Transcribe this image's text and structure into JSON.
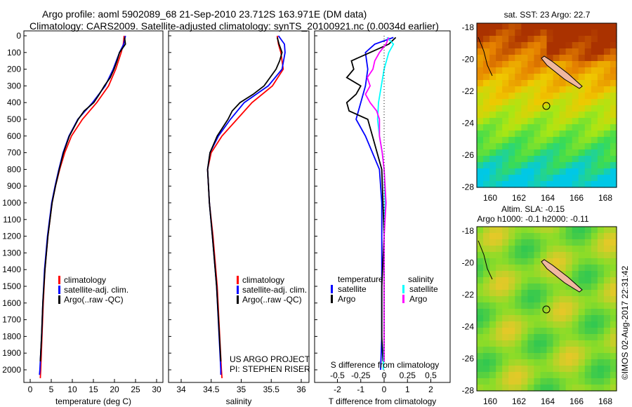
{
  "title_line1": "Argo profile: aoml 5902089_68 21-Sep-2010 23.712S 163.971E (DM data)",
  "title_line2": "Climatology: CARS2009. Satellite-adjusted climatology: synTS_20100921.nc (0.0034d earlier)",
  "credit": "©IMOS 02-Aug-2017 22:31:42",
  "project_line1": "US ARGO PROJECT",
  "project_line2": "PI: STEPHEN RISER",
  "colors": {
    "climatology": "#ff0000",
    "satellite": "#0000ff",
    "argo": "#000000",
    "sal_satellite": "#00ffff",
    "sal_argo": "#ff00ff"
  },
  "chart_data": [
    {
      "type": "line",
      "xlabel": "temperature (deg C)",
      "ylabel": "",
      "xlim": [
        -2,
        32
      ],
      "ylim": [
        2050,
        0
      ],
      "xticks": [
        "0",
        "5",
        "10",
        "15",
        "20",
        "25",
        "30"
      ],
      "yticks": [
        "0",
        "100",
        "200",
        "300",
        "400",
        "500",
        "600",
        "700",
        "800",
        "900",
        "1000",
        "1100",
        "1200",
        "1300",
        "1400",
        "1500",
        "1600",
        "1700",
        "1800",
        "1900",
        "2000"
      ],
      "legend": [
        "climatology",
        "satellite-adj. clim.",
        "Argo(..raw -QC)"
      ],
      "series": [
        {
          "name": "climatology",
          "depth": [
            0,
            50,
            100,
            200,
            300,
            400,
            500,
            600,
            700,
            800,
            900,
            1000,
            1200,
            1400,
            1600,
            1800,
            2000,
            2050
          ],
          "values": [
            22.3,
            22.1,
            21.6,
            20.3,
            18.6,
            15.8,
            12.4,
            9.8,
            8.2,
            7,
            6,
            5.2,
            4.2,
            3.5,
            3.1,
            2.8,
            2.5,
            2.4
          ]
        },
        {
          "name": "satellite-adj. clim.",
          "depth": [
            0,
            50,
            100,
            200,
            300,
            400,
            500,
            600,
            700,
            800,
            900,
            1000,
            1200,
            1400,
            1600,
            1800,
            2000,
            2030
          ],
          "values": [
            22.6,
            22.2,
            21.2,
            19.7,
            17.8,
            14.8,
            11.3,
            9.2,
            7.8,
            6.8,
            5.9,
            5.1,
            4.1,
            3.4,
            3.0,
            2.7,
            2.3,
            2.2
          ]
        },
        {
          "name": "Argo(..raw -QC)",
          "depth": [
            10,
            50,
            100,
            150,
            200,
            250,
            300,
            350,
            400,
            450,
            500,
            600,
            700,
            800,
            900,
            1000,
            1200,
            1400,
            1600,
            1800,
            1950
          ],
          "values": [
            22.4,
            22.6,
            21.2,
            20.6,
            19.9,
            19,
            17.6,
            16.4,
            15.1,
            12.8,
            11.4,
            9.3,
            7.9,
            6.9,
            6,
            5.2,
            4.2,
            3.5,
            3.0,
            2.7,
            2.4
          ]
        }
      ]
    },
    {
      "type": "line",
      "xlabel": "salinity",
      "ylabel": "",
      "xlim": [
        33.8,
        36.1
      ],
      "ylim": [
        2050,
        0
      ],
      "xticks": [
        "34",
        "34.5",
        "35",
        "35.5",
        "36"
      ],
      "legend": [
        "climatology",
        "satellite-adj. clim.",
        "Argo(..raw -QC)"
      ],
      "series": [
        {
          "name": "climatology",
          "depth": [
            0,
            50,
            100,
            200,
            300,
            400,
            500,
            600,
            700,
            800,
            1000,
            1200,
            1500,
            2000,
            2050
          ],
          "values": [
            35.6,
            35.62,
            35.66,
            35.7,
            35.52,
            35.18,
            34.93,
            34.68,
            34.5,
            34.44,
            34.47,
            34.53,
            34.6,
            34.67,
            34.68
          ]
        },
        {
          "name": "satellite-adj. clim.",
          "depth": [
            0,
            50,
            100,
            200,
            300,
            400,
            500,
            600,
            700,
            800,
            1000,
            1200,
            1500,
            2000,
            2030
          ],
          "values": [
            35.62,
            35.72,
            35.73,
            35.68,
            35.45,
            35.05,
            34.82,
            34.62,
            34.48,
            34.44,
            34.47,
            34.52,
            34.59,
            34.66,
            34.66
          ]
        },
        {
          "name": "Argo(..raw -QC)",
          "depth": [
            10,
            50,
            100,
            150,
            200,
            250,
            300,
            350,
            400,
            450,
            500,
            600,
            700,
            800,
            1000,
            1200,
            1500,
            1950
          ],
          "values": [
            35.6,
            35.63,
            35.68,
            35.64,
            35.58,
            35.48,
            35.38,
            35.2,
            34.98,
            34.85,
            34.78,
            34.6,
            34.48,
            34.44,
            34.47,
            34.52,
            34.59,
            34.66
          ]
        }
      ]
    },
    {
      "type": "line",
      "xlabel": "T difference from climatology",
      "xlabel_top": "S difference from climatology",
      "xlim": [
        -2.9,
        2.9
      ],
      "ylim": [
        2050,
        0
      ],
      "xticks": [
        "-2",
        "-1",
        "0",
        "1",
        "2"
      ],
      "xticks_top": [
        "-0.5",
        "-0.25",
        "0",
        "0.25",
        "0.5"
      ],
      "legend_temp_title": "temperature",
      "legend_sal_title": "salinity",
      "legend": [
        "satellite",
        "Argo",
        "satellite",
        "Argo"
      ],
      "series": [
        {
          "name": "T satellite",
          "depth": [
            10,
            50,
            100,
            200,
            300,
            400,
            500,
            600,
            700,
            800,
            1000,
            1200,
            1500,
            1800,
            2000
          ],
          "values": [
            0.4,
            -0.4,
            -0.8,
            -0.7,
            -0.8,
            -1.0,
            -1.2,
            -0.8,
            -0.5,
            -0.2,
            -0.1,
            -0.1,
            -0.1,
            -0.1,
            -0.15
          ]
        },
        {
          "name": "T Argo",
          "depth": [
            10,
            50,
            100,
            150,
            200,
            250,
            300,
            350,
            400,
            450,
            500,
            600,
            700,
            800,
            1000,
            1200,
            1500,
            1800,
            1950
          ],
          "values": [
            0.5,
            0.2,
            -0.6,
            -1.4,
            -1.3,
            -1.6,
            -1.0,
            -1.2,
            -1.6,
            -1.5,
            -0.7,
            -0.5,
            -0.3,
            -0.1,
            -0.05,
            0,
            -0.1,
            -0.1,
            -0.05
          ]
        },
        {
          "name": "S satellite",
          "depth": [
            10,
            50,
            100,
            200,
            300,
            400,
            500,
            600,
            700,
            800,
            1000,
            1200,
            1500,
            1800,
            2000
          ],
          "values": [
            0.03,
            0.1,
            0.05,
            0.0,
            -0.03,
            -0.06,
            -0.07,
            -0.05,
            -0.02,
            0.0,
            0.01,
            0.0,
            0.0,
            0.0,
            -0.01
          ]
        },
        {
          "name": "S Argo",
          "depth": [
            10,
            50,
            100,
            150,
            200,
            250,
            300,
            350,
            400,
            450,
            500,
            600,
            700,
            800,
            1000,
            1200,
            1500,
            1800,
            1950
          ],
          "values": [
            0.05,
            0.02,
            -0.05,
            -0.1,
            -0.12,
            -0.18,
            -0.15,
            -0.2,
            -0.15,
            -0.08,
            -0.05,
            -0.05,
            -0.02,
            0.0,
            0.02,
            0.0,
            0.0,
            0.0,
            0.0
          ]
        }
      ]
    },
    {
      "type": "heatmap",
      "title": "sat. SST: 23 Argo: 22.7",
      "xticks": [
        "160",
        "162",
        "164",
        "166",
        "168"
      ],
      "yticks": [
        "-18",
        "-20",
        "-22",
        "-24",
        "-26",
        "-28"
      ]
    },
    {
      "type": "heatmap",
      "title": "Altim. SLA: -0.15",
      "subtitle": "Argo h1000: -0.1 h2000: -0.11",
      "xticks": [
        "160",
        "162",
        "164",
        "166",
        "168"
      ],
      "yticks": [
        "-18",
        "-20",
        "-22",
        "-24",
        "-26",
        "-28"
      ]
    }
  ]
}
